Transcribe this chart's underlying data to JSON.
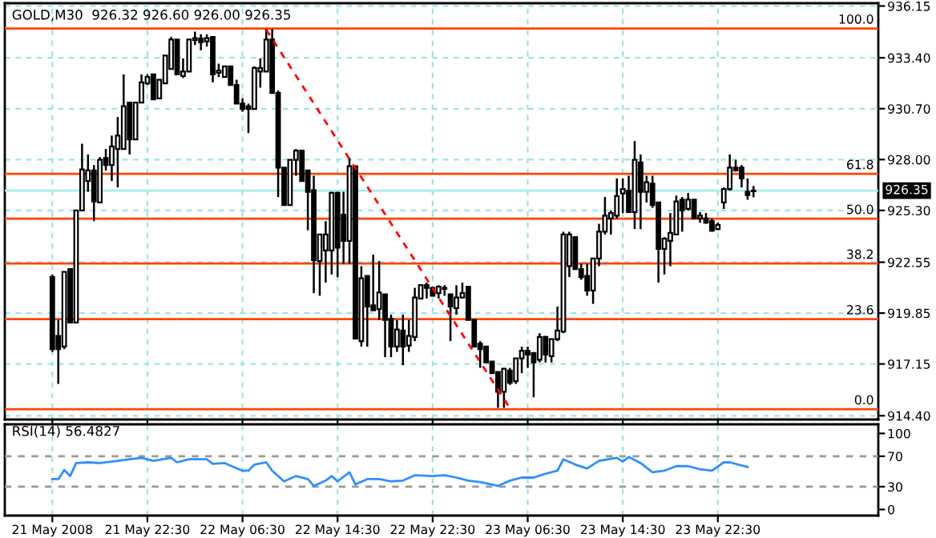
{
  "chart_data": [
    {
      "type": "candlestick",
      "title": "GOLD,M30  926.32 926.60 926.00 926.35",
      "x": [
        "2008-05-21T14:30",
        "2008-05-21T15:00",
        "2008-05-21T15:30",
        "2008-05-21T16:00",
        "2008-05-21T16:30",
        "2008-05-21T17:00",
        "2008-05-21T17:30",
        "2008-05-21T18:00",
        "2008-05-21T18:30",
        "2008-05-21T19:00",
        "2008-05-21T19:30",
        "2008-05-21T20:00",
        "2008-05-21T20:30",
        "2008-05-21T21:00",
        "2008-05-21T21:30",
        "2008-05-21T22:00",
        "2008-05-21T22:30",
        "2008-05-21T23:00",
        "2008-05-21T23:30",
        "2008-05-22T00:00",
        "2008-05-22T00:30",
        "2008-05-22T01:00",
        "2008-05-22T01:30",
        "2008-05-22T02:00",
        "2008-05-22T02:30",
        "2008-05-22T03:00",
        "2008-05-22T03:30",
        "2008-05-22T04:00",
        "2008-05-22T04:30",
        "2008-05-22T05:00",
        "2008-05-22T05:30",
        "2008-05-22T06:00",
        "2008-05-22T06:30",
        "2008-05-22T07:00",
        "2008-05-22T07:30",
        "2008-05-22T08:00",
        "2008-05-22T08:30",
        "2008-05-22T09:00",
        "2008-05-22T09:30",
        "2008-05-22T10:00",
        "2008-05-22T10:30",
        "2008-05-22T11:00",
        "2008-05-22T11:30",
        "2008-05-22T12:00",
        "2008-05-22T12:30",
        "2008-05-22T13:00",
        "2008-05-22T13:30",
        "2008-05-22T14:00",
        "2008-05-22T14:30",
        "2008-05-22T15:00",
        "2008-05-22T15:30",
        "2008-05-22T16:00",
        "2008-05-22T16:30",
        "2008-05-22T17:00",
        "2008-05-22T17:30",
        "2008-05-22T18:00",
        "2008-05-22T18:30",
        "2008-05-22T19:00",
        "2008-05-22T19:30",
        "2008-05-22T20:00",
        "2008-05-22T20:30",
        "2008-05-22T21:00",
        "2008-05-22T21:30",
        "2008-05-22T22:00",
        "2008-05-22T22:30",
        "2008-05-22T23:00",
        "2008-05-22T23:30",
        "2008-05-23T00:00",
        "2008-05-23T00:30",
        "2008-05-23T01:00",
        "2008-05-23T01:30",
        "2008-05-23T02:00",
        "2008-05-23T02:30",
        "2008-05-23T03:00",
        "2008-05-23T03:30",
        "2008-05-23T04:00",
        "2008-05-23T04:30",
        "2008-05-23T05:00",
        "2008-05-23T05:30",
        "2008-05-23T06:00",
        "2008-05-23T06:30",
        "2008-05-23T07:00",
        "2008-05-23T07:30",
        "2008-05-23T08:00",
        "2008-05-23T08:30",
        "2008-05-23T09:00",
        "2008-05-23T09:30",
        "2008-05-23T10:00",
        "2008-05-23T10:30",
        "2008-05-23T11:00",
        "2008-05-23T11:30",
        "2008-05-23T12:00",
        "2008-05-23T12:30",
        "2008-05-23T13:00",
        "2008-05-23T13:30",
        "2008-05-23T14:00",
        "2008-05-23T14:30",
        "2008-05-23T15:00",
        "2008-05-23T15:30",
        "2008-05-23T16:00",
        "2008-05-23T16:30",
        "2008-05-23T17:00",
        "2008-05-23T17:30",
        "2008-05-23T18:00",
        "2008-05-23T18:30",
        "2008-05-23T19:00",
        "2008-05-23T19:30",
        "2008-05-23T20:00",
        "2008-05-23T20:30",
        "2008-05-23T21:00",
        "2008-05-23T21:30",
        "2008-05-23T22:00",
        "2008-05-23T22:30",
        "2008-05-23T23:00",
        "2008-05-23T23:30",
        "2008-05-24T00:00",
        "2008-05-24T00:30",
        "2008-05-24T01:00",
        "2008-05-24T01:30"
      ],
      "ohlc": [
        [
          921.76,
          921.9,
          917.79,
          917.93
        ],
        [
          918.64,
          919.49,
          916.09,
          917.93
        ],
        [
          918.07,
          922.04,
          917.93,
          922.04
        ],
        [
          922.18,
          922.18,
          919.35,
          919.35
        ],
        [
          919.35,
          925.3,
          919.35,
          925.3
        ],
        [
          925.3,
          928.84,
          925.3,
          927.48
        ],
        [
          926.86,
          928.27,
          926.29,
          927.42
        ],
        [
          927.42,
          927.71,
          924.73,
          925.78
        ],
        [
          925.72,
          928.13,
          925.72,
          927.99
        ],
        [
          928.08,
          928.56,
          927.42,
          927.71
        ],
        [
          927.71,
          929.27,
          926.86,
          928.7
        ],
        [
          928.56,
          930.26,
          926.52,
          929.27
        ],
        [
          928.56,
          932.52,
          928.56,
          930.83
        ],
        [
          931.02,
          931.02,
          928.27,
          929.07
        ],
        [
          929.07,
          931.02,
          929.07,
          931.02
        ],
        [
          931.02,
          932.52,
          931.02,
          932.1
        ],
        [
          932.04,
          932.52,
          931.96,
          932.38
        ],
        [
          932.52,
          932.52,
          931.19,
          931.19
        ],
        [
          931.25,
          932.24,
          931.25,
          932.24
        ],
        [
          932.04,
          933.52,
          932.04,
          933.52
        ],
        [
          932.81,
          934.51,
          932.81,
          934.37
        ],
        [
          934.37,
          934.37,
          932.52,
          932.52
        ],
        [
          932.44,
          933.37,
          932.33,
          932.67
        ],
        [
          932.67,
          934.37,
          932.67,
          934.37
        ],
        [
          934.34,
          934.79,
          934.08,
          934.45
        ],
        [
          934.42,
          934.65,
          933.8,
          934.22
        ],
        [
          934.28,
          934.65,
          934.0,
          934.45
        ],
        [
          934.51,
          934.51,
          932.1,
          932.52
        ],
        [
          932.61,
          933.09,
          932.38,
          932.72
        ],
        [
          932.38,
          932.95,
          932.38,
          932.95
        ],
        [
          932.95,
          932.95,
          931.96,
          931.96
        ],
        [
          931.96,
          932.24,
          930.97,
          930.97
        ],
        [
          930.97,
          931.25,
          930.54,
          930.68
        ],
        [
          930.83,
          930.97,
          929.41,
          930.68
        ],
        [
          930.68,
          932.95,
          930.68,
          932.86
        ],
        [
          932.67,
          933.37,
          931.82,
          932.86
        ],
        [
          932.67,
          934.93,
          932.67,
          934.37
        ],
        [
          934.37,
          934.93,
          931.53,
          931.53
        ],
        [
          931.53,
          931.67,
          926.01,
          927.57
        ],
        [
          927.57,
          927.57,
          925.58,
          925.58
        ],
        [
          925.58,
          927.99,
          925.58,
          927.99
        ],
        [
          927.99,
          928.56,
          927.14,
          928.47
        ],
        [
          928.47,
          928.47,
          926.86,
          926.86
        ],
        [
          927.42,
          927.42,
          924.25,
          926.29
        ],
        [
          926.37,
          927.14,
          920.91,
          922.66
        ],
        [
          922.61,
          924.02,
          920.77,
          924.02
        ],
        [
          923.17,
          924.73,
          921.47,
          924.02
        ],
        [
          923.17,
          926.29,
          921.9,
          926.23
        ],
        [
          926.23,
          926.29,
          921.76,
          923.32
        ],
        [
          925.07,
          926.29,
          922.47,
          923.68
        ],
        [
          923.68,
          928.08,
          922.47,
          927.65
        ],
        [
          927.65,
          927.65,
          918.5,
          918.5
        ],
        [
          918.36,
          922.34,
          918.07,
          921.7
        ],
        [
          921.82,
          921.82,
          918.07,
          920.2
        ],
        [
          920.26,
          922.95,
          920.0,
          920.0
        ],
        [
          920.06,
          922.61,
          919.49,
          920.94
        ],
        [
          920.85,
          920.85,
          917.51,
          919.49
        ],
        [
          919.55,
          919.77,
          917.51,
          918.07
        ],
        [
          918.07,
          919.49,
          917.79,
          918.98
        ],
        [
          918.92,
          919.77,
          917.08,
          918.07
        ],
        [
          918.13,
          919.49,
          917.79,
          918.64
        ],
        [
          918.58,
          921.19,
          918.36,
          920.68
        ],
        [
          920.62,
          921.33,
          920.62,
          921.33
        ],
        [
          921.33,
          921.47,
          920.62,
          921.19
        ],
        [
          921.19,
          921.25,
          920.77,
          920.77
        ],
        [
          920.91,
          921.33,
          920.62,
          921.25
        ],
        [
          921.19,
          921.33,
          920.77,
          921.13
        ],
        [
          920.85,
          920.85,
          918.36,
          920.2
        ],
        [
          920.11,
          921.33,
          919.77,
          920.68
        ],
        [
          920.68,
          921.47,
          920.62,
          920.91
        ],
        [
          921.25,
          921.25,
          919.49,
          919.49
        ],
        [
          919.49,
          919.49,
          918.07,
          918.07
        ],
        [
          918.22,
          918.36,
          916.94,
          917.93
        ],
        [
          918.07,
          918.07,
          917.23,
          917.23
        ],
        [
          917.28,
          917.28,
          916.66,
          916.66
        ],
        [
          916.72,
          916.72,
          914.82,
          915.67
        ],
        [
          915.67,
          916.94,
          914.82,
          916.89
        ],
        [
          916.8,
          916.94,
          916.04,
          916.15
        ],
        [
          916.23,
          917.45,
          916.09,
          917.45
        ],
        [
          917.45,
          918.07,
          916.66,
          917.85
        ],
        [
          917.85,
          918.07,
          916.94,
          917.65
        ],
        [
          917.73,
          917.73,
          915.38,
          917.23
        ],
        [
          917.37,
          918.78,
          917.23,
          918.58
        ],
        [
          918.58,
          918.64,
          917.23,
          917.65
        ],
        [
          917.56,
          918.5,
          917.23,
          918.47
        ],
        [
          918.47,
          920.2,
          918.36,
          918.92
        ],
        [
          918.87,
          924.17,
          918.78,
          924.02
        ],
        [
          922.34,
          924.17,
          921.76,
          924.02
        ],
        [
          923.88,
          923.88,
          922.18,
          922.18
        ],
        [
          922.18,
          922.47,
          921.62,
          921.76
        ],
        [
          921.82,
          922.47,
          920.77,
          921.05
        ],
        [
          921.05,
          922.75,
          920.34,
          922.75
        ],
        [
          922.75,
          924.59,
          922.34,
          924.17
        ],
        [
          924.17,
          926.01,
          924.02,
          925.02
        ],
        [
          924.87,
          925.3,
          924.02,
          925.16
        ],
        [
          925.02,
          927.0,
          924.87,
          926.06
        ],
        [
          926.2,
          927.0,
          925.16,
          926.43
        ],
        [
          926.35,
          927.14,
          925.16,
          925.21
        ],
        [
          925.21,
          928.98,
          924.31,
          927.99
        ],
        [
          927.85,
          928.27,
          924.31,
          926.29
        ],
        [
          926.29,
          927.14,
          925.72,
          926.8
        ],
        [
          926.72,
          927.14,
          925.44,
          925.58
        ],
        [
          925.72,
          925.72,
          921.47,
          923.26
        ],
        [
          923.26,
          923.88,
          921.9,
          923.8
        ],
        [
          923.68,
          925.16,
          922.34,
          924.11
        ],
        [
          924.02,
          926.09,
          924.02,
          925.78
        ],
        [
          925.87,
          926.01,
          924.17,
          925.3
        ],
        [
          925.38,
          926.23,
          925.3,
          925.87
        ],
        [
          925.87,
          925.87,
          924.87,
          924.87
        ],
        [
          924.87,
          925.21,
          924.65,
          925.02
        ],
        [
          924.87,
          925.16,
          924.59,
          924.65
        ],
        [
          924.73,
          924.87,
          924.17,
          924.22
        ],
        [
          924.31,
          924.65,
          924.25,
          924.53
        ],
        [
          925.72,
          926.52,
          925.38,
          926.43
        ],
        [
          926.43,
          928.27,
          926.35,
          927.57
        ],
        [
          927.57,
          927.99,
          927.36,
          927.42
        ],
        [
          927.57,
          927.71,
          926.52,
          927.0
        ],
        [
          926.29,
          927.0,
          925.87,
          926.12
        ],
        [
          926.32,
          926.6,
          926.0,
          926.35
        ]
      ],
      "series": [
        {
          "type": "line",
          "x": [
            "2008-05-22T08:30",
            "2008-05-23T05:00"
          ],
          "values": [
            934.9,
            914.8
          ],
          "color": "#ff0000",
          "line_style": "dashed"
        }
      ],
      "ref_lines": [
        {
          "axis": "y",
          "value": 934.96,
          "color": "#ff4500"
        },
        {
          "axis": "y",
          "value": 927.24,
          "color": "#ff4500"
        },
        {
          "axis": "y",
          "value": 924.86,
          "color": "#ff4500"
        },
        {
          "axis": "y",
          "value": 922.48,
          "color": "#ff4500"
        },
        {
          "axis": "y",
          "value": 919.53,
          "color": "#ff4500"
        },
        {
          "axis": "y",
          "value": 914.75,
          "color": "#ff4500"
        },
        {
          "axis": "y",
          "value": 926.35,
          "label": "926.35",
          "color": "#a8ecec"
        }
      ],
      "annotations": [
        "100.0",
        "61.8",
        "50.0",
        "38.2",
        "23.6",
        "0.0"
      ],
      "xlim": [
        "2008-05-21T10:30",
        "2008-05-24T12:00"
      ],
      "xticks": [
        {
          "value": "2008-05-21T14:30",
          "label": null
        },
        {
          "value": "2008-05-21T22:30",
          "label": null
        },
        {
          "value": "2008-05-22T06:30",
          "label": null
        },
        {
          "value": "2008-05-22T14:30",
          "label": null
        },
        {
          "value": "2008-05-22T22:30",
          "label": null
        },
        {
          "value": "2008-05-23T06:30",
          "label": null
        },
        {
          "value": "2008-05-23T14:30",
          "label": null
        },
        {
          "value": "2008-05-23T22:30",
          "label": null
        }
      ],
      "ylim": [
        914.2,
        936.3
      ],
      "yticks": [
        {
          "value": 914.4,
          "label": "914.40"
        },
        {
          "value": 917.15,
          "label": "917.15"
        },
        {
          "value": 919.85,
          "label": "919.85"
        },
        {
          "value": 922.55,
          "label": "922.55"
        },
        {
          "value": 925.3,
          "label": "925.30"
        },
        {
          "value": 928.0,
          "label": "928.00"
        },
        {
          "value": 930.7,
          "label": "930.70"
        },
        {
          "value": 933.4,
          "label": "933.40"
        },
        {
          "value": 936.15,
          "label": "936.15"
        }
      ],
      "tick_labels": "y",
      "grid": true
    },
    {
      "type": "line",
      "title": "RSI(14) 56.4827",
      "series": [
        {
          "color": "#2f8fff",
          "x": [
            "2008-05-21T14:30",
            "2008-05-21T15:00",
            "2008-05-21T15:30",
            "2008-05-21T16:00",
            "2008-05-21T16:30",
            "2008-05-21T17:30",
            "2008-05-21T18:30",
            "2008-05-21T20:00",
            "2008-05-21T21:00",
            "2008-05-21T22:00",
            "2008-05-21T23:00",
            "2008-05-22T00:30",
            "2008-05-22T01:00",
            "2008-05-22T02:00",
            "2008-05-22T03:30",
            "2008-05-22T04:00",
            "2008-05-22T05:00",
            "2008-05-22T06:30",
            "2008-05-22T07:00",
            "2008-05-22T07:30",
            "2008-05-22T08:30",
            "2008-05-22T09:00",
            "2008-05-22T10:00",
            "2008-05-22T11:00",
            "2008-05-22T12:00",
            "2008-05-22T12:30",
            "2008-05-22T13:30",
            "2008-05-22T14:00",
            "2008-05-22T14:30",
            "2008-05-22T15:30",
            "2008-05-22T16:00",
            "2008-05-22T17:00",
            "2008-05-22T18:00",
            "2008-05-22T19:00",
            "2008-05-22T20:00",
            "2008-05-22T21:00",
            "2008-05-22T22:30",
            "2008-05-22T23:30",
            "2008-05-23T00:30",
            "2008-05-23T01:30",
            "2008-05-23T02:30",
            "2008-05-23T04:00",
            "2008-05-23T05:00",
            "2008-05-23T06:00",
            "2008-05-23T07:00",
            "2008-05-23T08:00",
            "2008-05-23T09:00",
            "2008-05-23T09:30",
            "2008-05-23T10:30",
            "2008-05-23T11:30",
            "2008-05-23T12:30",
            "2008-05-23T14:00",
            "2008-05-23T14:30",
            "2008-05-23T15:00",
            "2008-05-23T16:00",
            "2008-05-23T17:00",
            "2008-05-23T18:00",
            "2008-05-23T19:00",
            "2008-05-23T20:00",
            "2008-05-23T21:00",
            "2008-05-23T22:00",
            "2008-05-23T23:00",
            "2008-05-23T23:30",
            "2008-05-24T01:00"
          ],
          "values": [
            40,
            40,
            52,
            44,
            61,
            62,
            61,
            64,
            66,
            68,
            64,
            68,
            62,
            66,
            66,
            60,
            61,
            51,
            51,
            59,
            62,
            51,
            37,
            44,
            40,
            31,
            38,
            44,
            37,
            49,
            33,
            40,
            40,
            37,
            38,
            45,
            44,
            45,
            42,
            38,
            36,
            31,
            38,
            42,
            42,
            47,
            51,
            66,
            59,
            54,
            64,
            68,
            63,
            69,
            61,
            49,
            51,
            57,
            57,
            53,
            51,
            62,
            62,
            56
          ]
        }
      ],
      "ref_lines": [
        {
          "axis": "y",
          "value": 30,
          "color": "#999999",
          "line_style": "dashed"
        },
        {
          "axis": "y",
          "value": 70,
          "color": "#999999",
          "line_style": "dashed"
        }
      ],
      "xlim": [
        "2008-05-21T10:30",
        "2008-05-24T12:00"
      ],
      "xticks": [
        {
          "value": "2008-05-21T14:30",
          "label": "21 May 2008"
        },
        {
          "value": "2008-05-21T22:30",
          "label": "21 May 22:30"
        },
        {
          "value": "2008-05-22T06:30",
          "label": "22 May 06:30"
        },
        {
          "value": "2008-05-22T14:30",
          "label": "22 May 14:30"
        },
        {
          "value": "2008-05-22T22:30",
          "label": "22 May 22:30"
        },
        {
          "value": "2008-05-23T06:30",
          "label": "23 May 06:30"
        },
        {
          "value": "2008-05-23T14:30",
          "label": "23 May 14:30"
        },
        {
          "value": "2008-05-23T22:30",
          "label": "23 May 22:30"
        }
      ],
      "ylim": [
        -8,
        112
      ],
      "yticks": [
        0,
        30,
        70,
        100
      ],
      "grid": "x"
    }
  ]
}
